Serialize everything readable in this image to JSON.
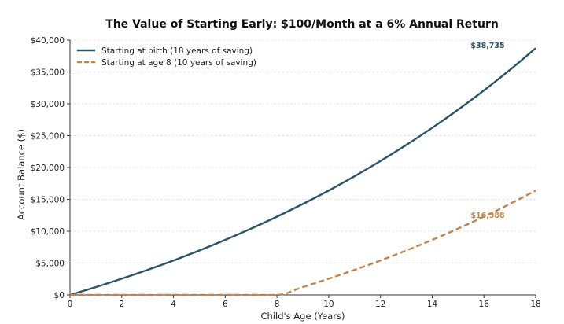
{
  "chart_data": {
    "type": "line",
    "title": "The Value of Starting Early: $100/Month at a 6% Annual Return",
    "xlabel": "Child's Age (Years)",
    "ylabel": "Account Balance ($)",
    "xlim": [
      0,
      18
    ],
    "ylim": [
      0,
      40000
    ],
    "x_ticks": [
      0,
      2,
      4,
      6,
      8,
      10,
      12,
      14,
      16,
      18
    ],
    "x_tick_labels": [
      "0",
      "2",
      "4",
      "6",
      "8",
      "10",
      "12",
      "14",
      "16",
      "18"
    ],
    "y_ticks": [
      0,
      5000,
      10000,
      15000,
      20000,
      25000,
      30000,
      35000,
      40000
    ],
    "y_tick_labels": [
      "$0",
      "$5,000",
      "$10,000",
      "$15,000",
      "$20,000",
      "$25,000",
      "$30,000",
      "$35,000",
      "$40,000"
    ],
    "grid": "horizontal",
    "legend_position": "top-left",
    "series": [
      {
        "name": "Starting at birth (18 years of saving)",
        "color": "#2b5466",
        "style": "solid",
        "x": [
          0,
          1,
          2,
          3,
          4,
          5,
          6,
          7,
          8,
          9,
          10,
          11,
          12,
          13,
          14,
          15,
          16,
          17,
          18
        ],
        "values": [
          0,
          1234,
          2543,
          3933,
          5408,
          6977,
          8640,
          10408,
          12283,
          14275,
          16388,
          18634,
          21015,
          23545,
          26226,
          29077,
          32100,
          35311,
          38735
        ],
        "end_label": "$38,735"
      },
      {
        "name": "Starting at age 8 (10 years of saving)",
        "color": "#c4824a",
        "style": "dashed",
        "x": [
          0,
          1,
          2,
          3,
          4,
          5,
          6,
          7,
          8,
          9,
          10,
          11,
          12,
          13,
          14,
          15,
          16,
          17,
          18
        ],
        "values": [
          0,
          0,
          0,
          0,
          0,
          0,
          0,
          0,
          0,
          1234,
          2543,
          3933,
          5408,
          6977,
          8640,
          10408,
          12283,
          14275,
          16388
        ],
        "end_label": "$16,388"
      }
    ]
  }
}
